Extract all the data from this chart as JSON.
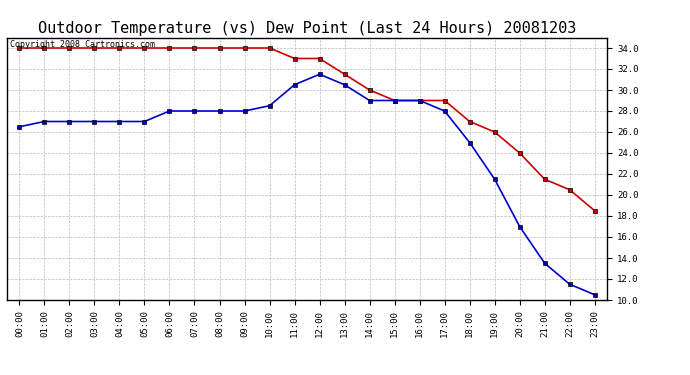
{
  "title": "Outdoor Temperature (vs) Dew Point (Last 24 Hours) 20081203",
  "copyright_text": "Copyright 2008 Cartronics.com",
  "hours": [
    "00:00",
    "01:00",
    "02:00",
    "03:00",
    "04:00",
    "05:00",
    "06:00",
    "07:00",
    "08:00",
    "09:00",
    "10:00",
    "11:00",
    "12:00",
    "13:00",
    "14:00",
    "15:00",
    "16:00",
    "17:00",
    "18:00",
    "19:00",
    "20:00",
    "21:00",
    "22:00",
    "23:00"
  ],
  "temp": [
    34.0,
    34.0,
    34.0,
    34.0,
    34.0,
    34.0,
    34.0,
    34.0,
    34.0,
    34.0,
    34.0,
    33.0,
    33.0,
    31.5,
    30.0,
    29.0,
    29.0,
    29.0,
    27.0,
    26.0,
    24.0,
    21.5,
    20.5,
    18.5
  ],
  "dew": [
    26.5,
    27.0,
    27.0,
    27.0,
    27.0,
    27.0,
    28.0,
    28.0,
    28.0,
    28.0,
    28.5,
    30.5,
    31.5,
    30.5,
    29.0,
    29.0,
    29.0,
    28.0,
    25.0,
    21.5,
    17.0,
    13.5,
    11.5,
    10.5
  ],
  "temp_color": "#cc0000",
  "dew_color": "#0000cc",
  "bg_color": "#ffffff",
  "grid_color": "#bbbbbb",
  "ylim": [
    10.0,
    35.0
  ],
  "ytick_min": 10.0,
  "ytick_max": 34.0,
  "ytick_step": 2.0,
  "marker": "s",
  "marker_size": 3,
  "line_width": 1.2,
  "title_fontsize": 11,
  "tick_fontsize": 6.5,
  "copyright_fontsize": 6
}
